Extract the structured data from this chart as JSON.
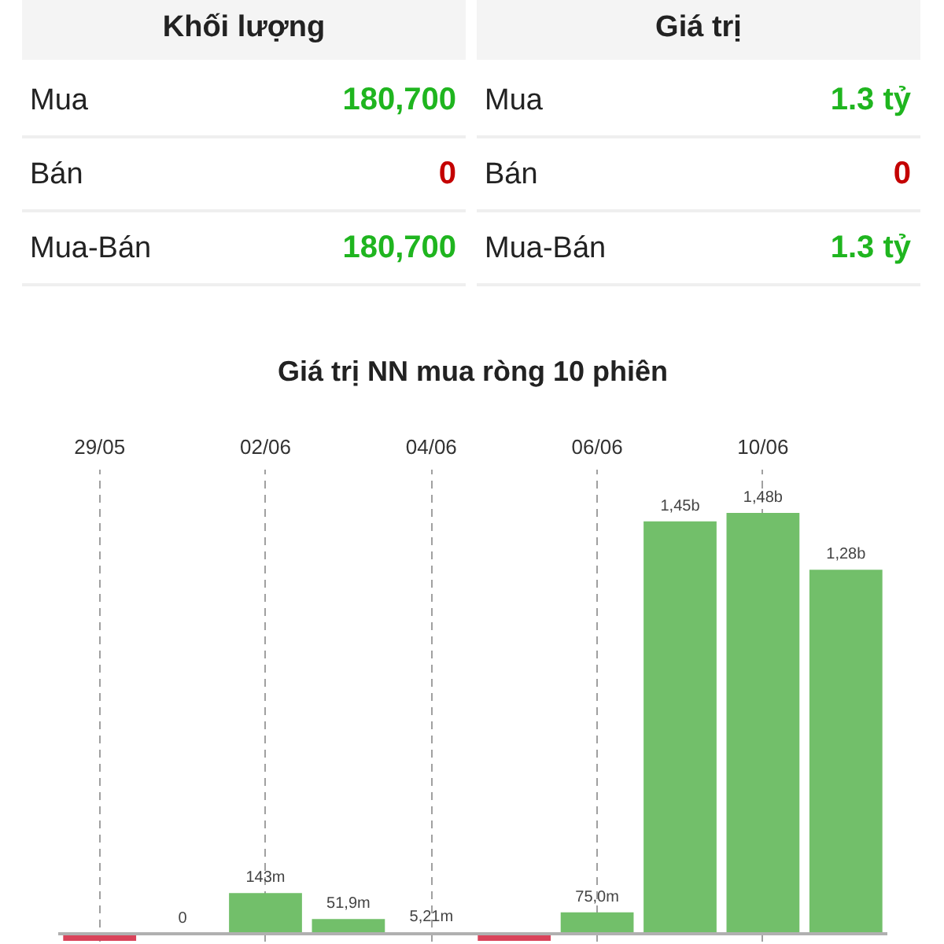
{
  "chart_data": [
    {
      "type": "other",
      "title": "Khối lượng",
      "categories": [
        "Mua",
        "Bán",
        "Mua-Bán"
      ],
      "value_labels": [
        "180,700",
        "0",
        "180,700"
      ],
      "colors": [
        "#1fb51f",
        "#c40000",
        "#1fb51f"
      ]
    },
    {
      "type": "other",
      "title": "Giá trị",
      "categories": [
        "Mua",
        "Bán",
        "Mua-Bán"
      ],
      "value_labels": [
        "1.3 tỷ",
        "0",
        "1.3 tỷ"
      ],
      "colors": [
        "#1fb51f",
        "#c40000",
        "#1fb51f"
      ]
    },
    {
      "type": "bar",
      "title": "Giá trị NN mua ròng 10 phiên",
      "categories": [
        "29/05",
        null,
        "02/06",
        null,
        "04/06",
        null,
        "06/06",
        null,
        "10/06",
        null
      ],
      "values": [
        -25000000,
        0,
        143000000,
        51900000,
        5210000,
        -25000000,
        75000000,
        1450000000,
        1480000000,
        1280000000
      ],
      "value_labels": [
        null,
        "0",
        "143m",
        "51,9m",
        "5,21m",
        null,
        "75,0m",
        "1,45b",
        "1,48b",
        "1,28b"
      ],
      "colors": [
        "#d9435a",
        "#72bf6a",
        "#72bf6a",
        "#72bf6a",
        "#72bf6a",
        "#d9435a",
        "#72bf6a",
        "#72bf6a",
        "#72bf6a",
        "#72bf6a"
      ],
      "grid": "x",
      "ref_lines": [
        {
          "axis": "y",
          "value": 0,
          "color": "#b0b0b0"
        }
      ]
    }
  ]
}
